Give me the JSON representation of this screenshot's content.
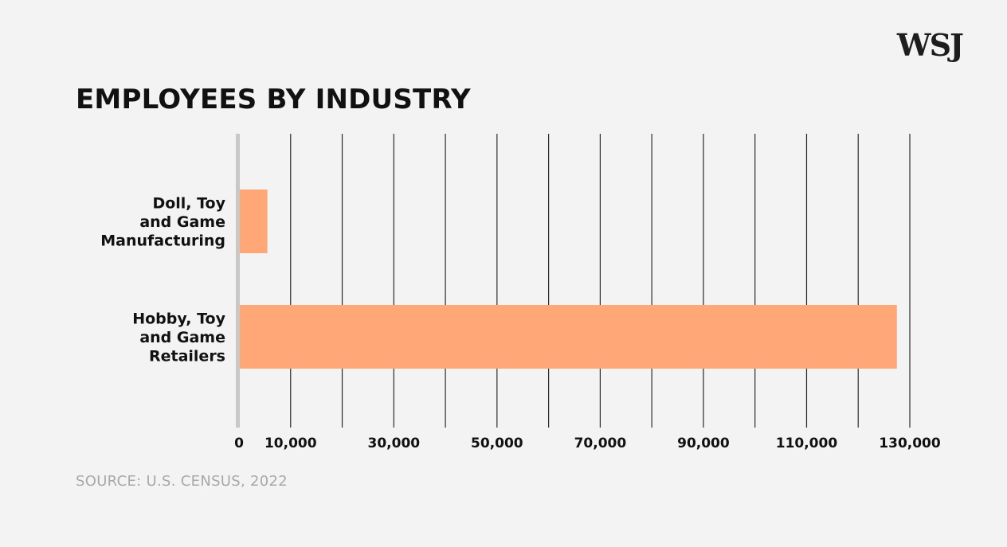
{
  "brand": {
    "logo_text": "WSJ"
  },
  "source": "SOURCE: U.S. CENSUS, 2022",
  "colors": {
    "background": "#f3f3f3",
    "bar": "#ffa776",
    "gridline": "#2a2a2a",
    "baseline": "#c8c8c8",
    "text": "#111111",
    "source_text": "#a8a8a8"
  },
  "chart_data": {
    "type": "bar",
    "orientation": "horizontal",
    "title": "EMPLOYEES BY INDUSTRY",
    "categories": [
      [
        "Doll, Toy",
        "and Game",
        "Manufacturing"
      ],
      [
        "Hobby, Toy",
        "and Game",
        "Retailers"
      ]
    ],
    "values": [
      5500,
      127500
    ],
    "xlim": [
      0,
      130000
    ],
    "gridlines": [
      10000,
      20000,
      30000,
      40000,
      50000,
      60000,
      70000,
      80000,
      90000,
      100000,
      110000,
      120000,
      130000
    ],
    "tick_labels": [
      "0",
      "10,000",
      "30,000",
      "50,000",
      "70,000",
      "90,000",
      "110,000",
      "130,000"
    ],
    "tick_values": [
      0,
      10000,
      30000,
      50000,
      70000,
      90000,
      110000,
      130000
    ],
    "grid": true,
    "legend": "none"
  }
}
